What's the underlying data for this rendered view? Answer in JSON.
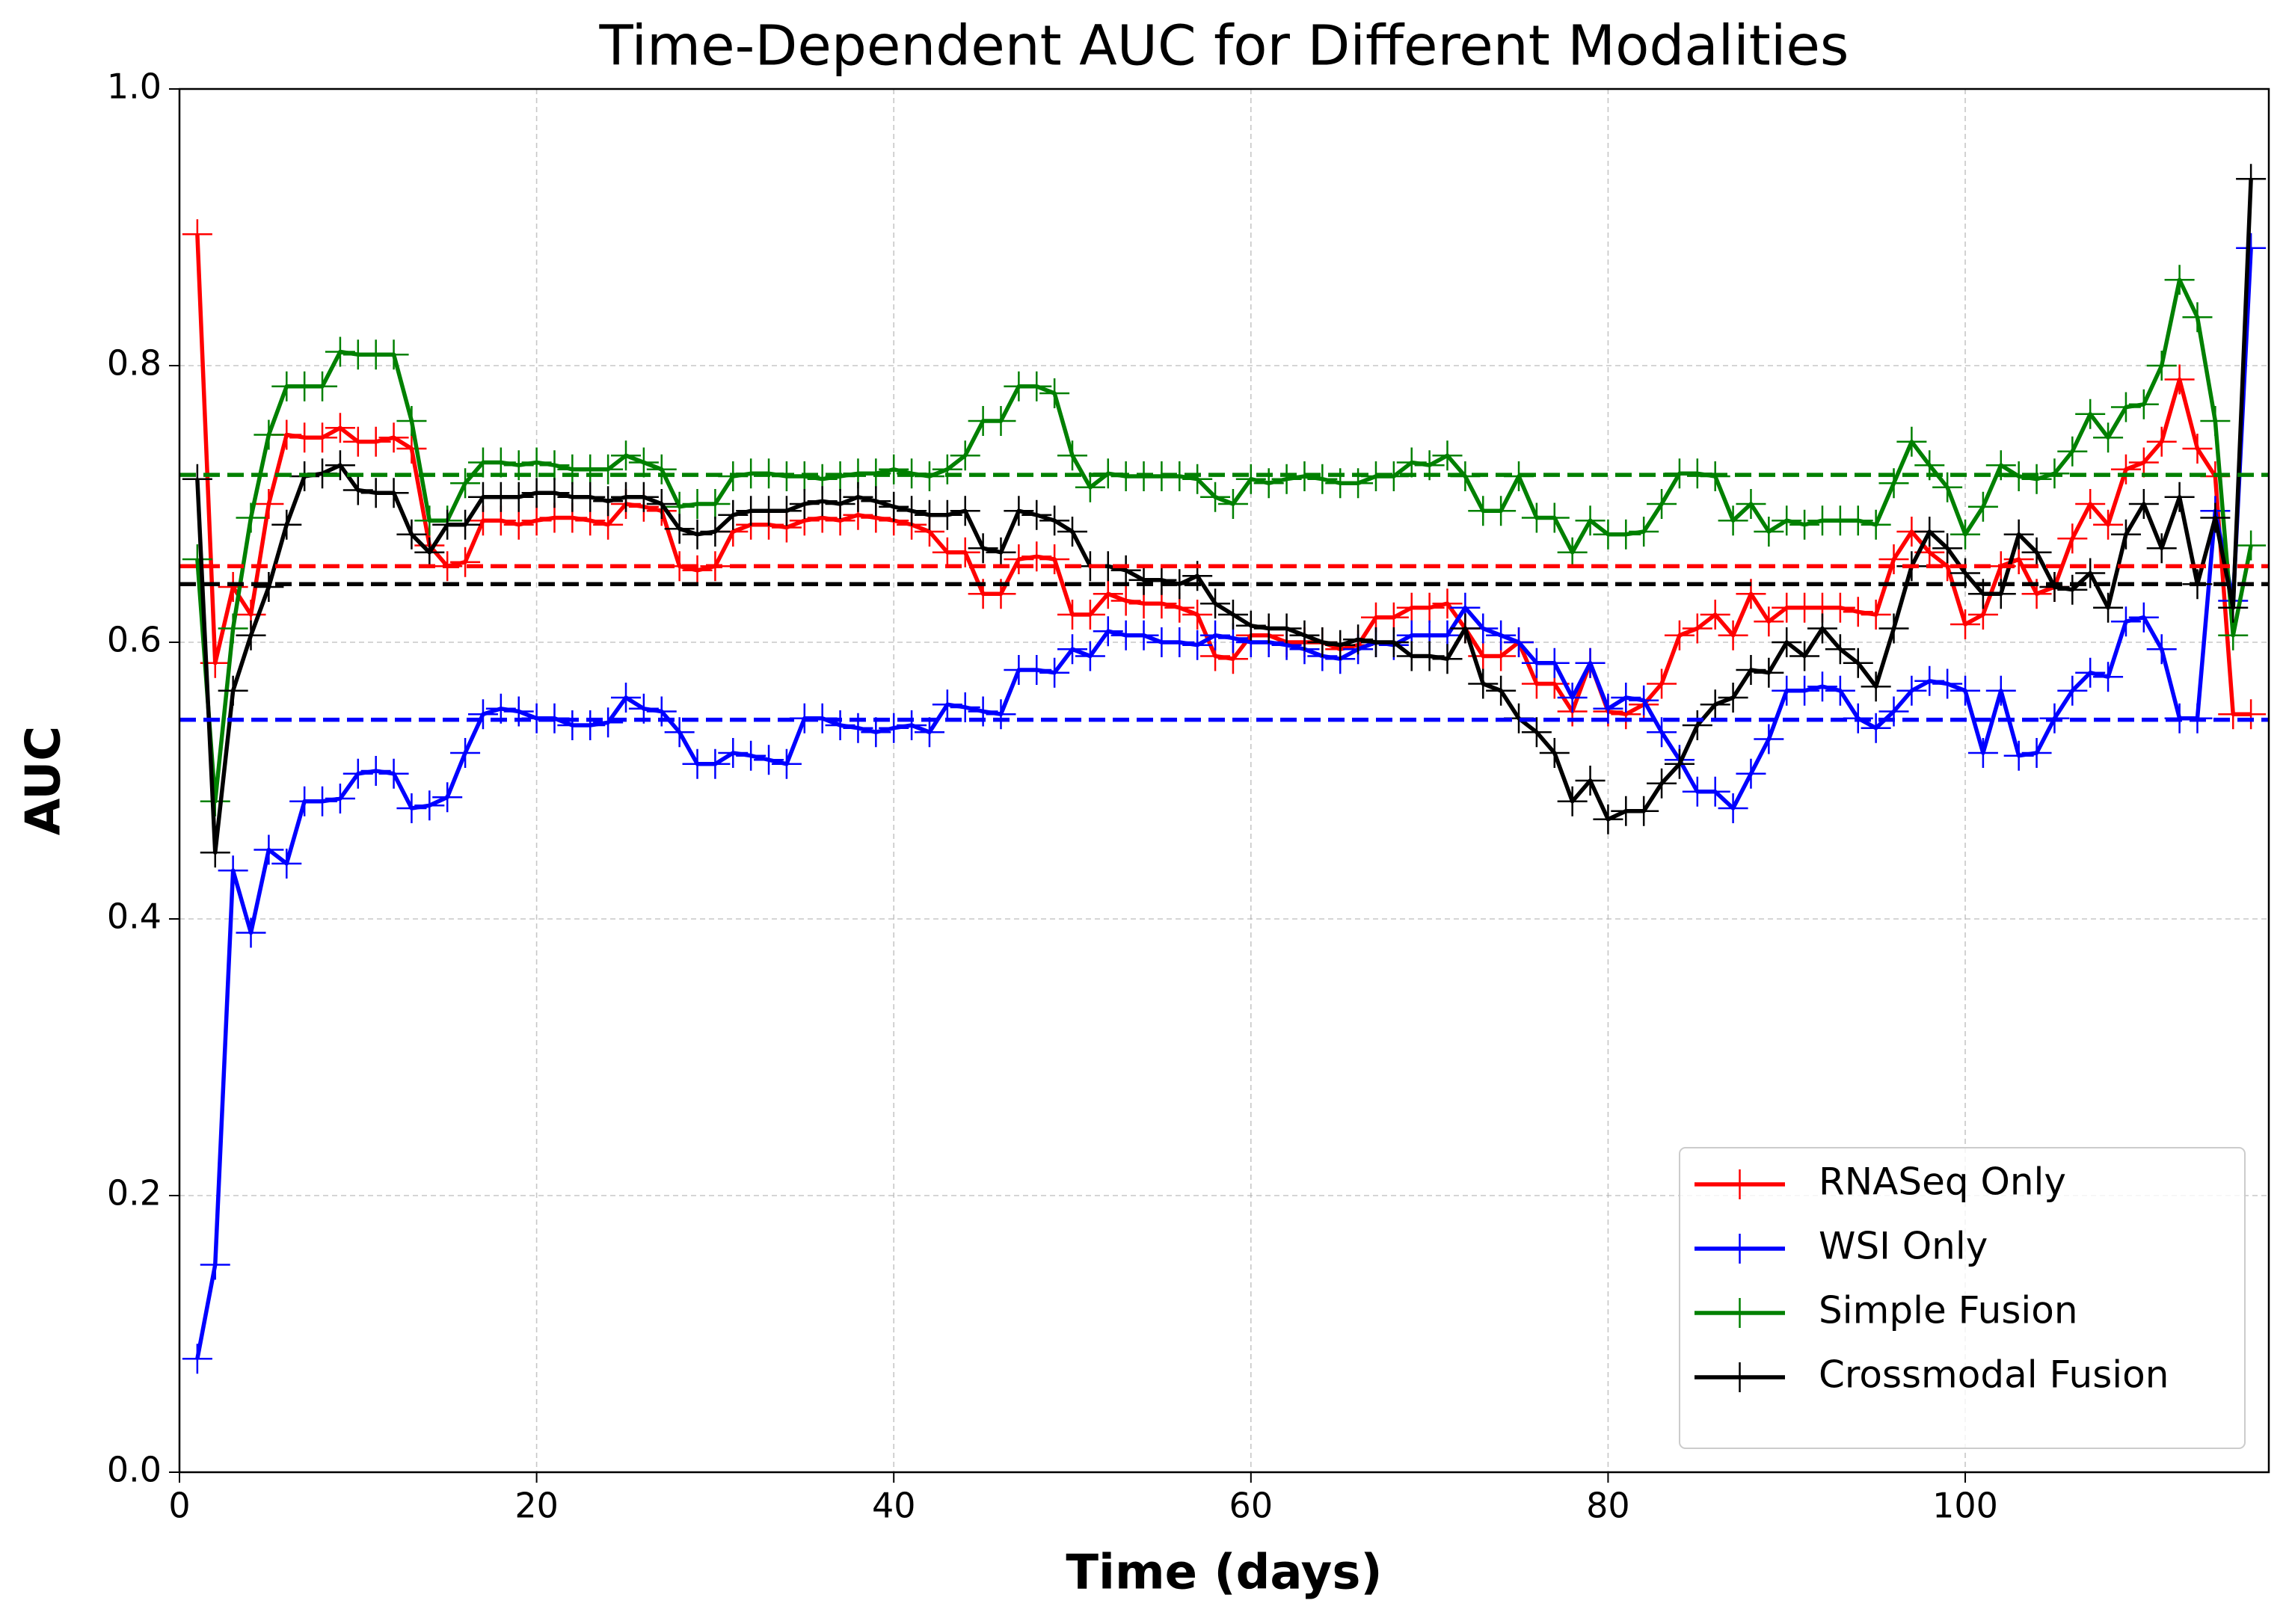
{
  "chart_data": {
    "type": "line",
    "title": "Time-Dependent AUC for Different Modalities",
    "xlabel": "Time (days)",
    "ylabel": "AUC",
    "x": [
      1,
      2,
      3,
      4,
      5,
      6,
      7,
      8,
      9,
      10,
      11,
      12,
      13,
      14,
      15,
      16,
      17,
      18,
      19,
      20,
      21,
      22,
      23,
      24,
      25,
      26,
      27,
      28,
      29,
      30,
      31,
      32,
      33,
      34,
      35,
      36,
      37,
      38,
      39,
      40,
      41,
      42,
      43,
      44,
      45,
      46,
      47,
      48,
      49,
      50,
      51,
      52,
      53,
      54,
      55,
      56,
      57,
      58,
      59,
      60,
      61,
      62,
      63,
      64,
      65,
      66,
      67,
      68,
      69,
      70,
      71,
      72,
      73,
      74,
      75,
      76,
      77,
      78,
      79,
      80,
      81,
      82,
      83,
      84,
      85,
      86,
      87,
      88,
      89,
      90,
      91,
      92,
      93,
      94,
      95,
      96,
      97,
      98,
      99,
      100,
      101,
      102,
      103,
      104,
      105,
      106,
      107,
      108,
      109,
      110,
      111,
      112,
      113,
      114,
      115,
      116
    ],
    "xlim": [
      0,
      117
    ],
    "ylim": [
      0,
      1
    ],
    "xticks": [
      0,
      20,
      40,
      60,
      80,
      100
    ],
    "yticks": [
      {
        "value": 0,
        "label": "0.0"
      },
      0.2,
      0.4,
      0.6,
      0.8,
      {
        "value": 1,
        "label": "1.0"
      }
    ],
    "grid": true,
    "legend": "lower right",
    "series": [
      {
        "name": "RNASeq Only",
        "color": "#ff0000",
        "mean": 0.655,
        "values": [
          0.895,
          0.585,
          0.64,
          0.62,
          0.7,
          0.75,
          0.748,
          0.748,
          0.755,
          0.745,
          0.745,
          0.748,
          0.74,
          0.67,
          0.655,
          0.658,
          0.688,
          0.688,
          0.685,
          0.688,
          0.69,
          0.69,
          0.688,
          0.685,
          0.7,
          0.698,
          0.695,
          0.655,
          0.652,
          0.655,
          0.68,
          0.685,
          0.685,
          0.683,
          0.688,
          0.69,
          0.688,
          0.692,
          0.69,
          0.688,
          0.685,
          0.68,
          0.665,
          0.665,
          0.635,
          0.635,
          0.66,
          0.662,
          0.66,
          0.62,
          0.62,
          0.635,
          0.63,
          0.628,
          0.628,
          0.625,
          0.62,
          0.59,
          0.588,
          0.605,
          0.605,
          0.6,
          0.6,
          0.6,
          0.595,
          0.598,
          0.618,
          0.618,
          0.625,
          0.625,
          0.628,
          0.61,
          0.59,
          0.59,
          0.6,
          0.57,
          0.57,
          0.55,
          0.585,
          0.55,
          0.548,
          0.555,
          0.57,
          0.605,
          0.61,
          0.62,
          0.605,
          0.635,
          0.615,
          0.625,
          0.625,
          0.625,
          0.625,
          0.622,
          0.62,
          0.66,
          0.68,
          0.665,
          0.655,
          0.613,
          0.62,
          0.655,
          0.66,
          0.635,
          0.64,
          0.675,
          0.7,
          0.685,
          0.725,
          0.73,
          0.745,
          0.79,
          0.74,
          0.72,
          0.548,
          0.548
        ]
      },
      {
        "name": "WSI Only",
        "color": "#0000ff",
        "mean": 0.544,
        "values": [
          0.082,
          0.15,
          0.435,
          0.39,
          0.45,
          0.44,
          0.485,
          0.485,
          0.487,
          0.505,
          0.507,
          0.505,
          0.48,
          0.482,
          0.488,
          0.52,
          0.548,
          0.552,
          0.55,
          0.545,
          0.545,
          0.54,
          0.54,
          0.542,
          0.56,
          0.552,
          0.55,
          0.535,
          0.512,
          0.512,
          0.52,
          0.518,
          0.515,
          0.512,
          0.545,
          0.545,
          0.54,
          0.538,
          0.535,
          0.538,
          0.54,
          0.535,
          0.555,
          0.553,
          0.55,
          0.548,
          0.58,
          0.58,
          0.578,
          0.595,
          0.59,
          0.608,
          0.605,
          0.605,
          0.6,
          0.6,
          0.598,
          0.605,
          0.603,
          0.6,
          0.6,
          0.598,
          0.595,
          0.59,
          0.588,
          0.595,
          0.6,
          0.598,
          0.605,
          0.605,
          0.605,
          0.625,
          0.61,
          0.605,
          0.6,
          0.585,
          0.585,
          0.56,
          0.585,
          0.552,
          0.56,
          0.558,
          0.535,
          0.515,
          0.492,
          0.492,
          0.48,
          0.505,
          0.53,
          0.565,
          0.565,
          0.568,
          0.565,
          0.545,
          0.538,
          0.55,
          0.565,
          0.572,
          0.57,
          0.565,
          0.52,
          0.565,
          0.518,
          0.52,
          0.545,
          0.565,
          0.578,
          0.575,
          0.615,
          0.618,
          0.595,
          0.545,
          0.545,
          0.695,
          0.63,
          0.885
        ]
      },
      {
        "name": "Simple Fusion",
        "color": "#008000",
        "mean": 0.721,
        "values": [
          0.66,
          0.485,
          0.61,
          0.69,
          0.75,
          0.785,
          0.785,
          0.785,
          0.81,
          0.808,
          0.808,
          0.808,
          0.76,
          0.688,
          0.688,
          0.715,
          0.73,
          0.73,
          0.728,
          0.73,
          0.728,
          0.725,
          0.725,
          0.725,
          0.735,
          0.73,
          0.725,
          0.698,
          0.7,
          0.7,
          0.72,
          0.722,
          0.722,
          0.72,
          0.72,
          0.718,
          0.72,
          0.722,
          0.722,
          0.725,
          0.722,
          0.72,
          0.725,
          0.735,
          0.76,
          0.76,
          0.785,
          0.785,
          0.78,
          0.735,
          0.712,
          0.722,
          0.72,
          0.72,
          0.72,
          0.72,
          0.718,
          0.705,
          0.7,
          0.718,
          0.715,
          0.718,
          0.72,
          0.718,
          0.715,
          0.715,
          0.72,
          0.72,
          0.73,
          0.728,
          0.735,
          0.72,
          0.695,
          0.695,
          0.72,
          0.69,
          0.69,
          0.665,
          0.688,
          0.678,
          0.678,
          0.68,
          0.7,
          0.722,
          0.722,
          0.72,
          0.688,
          0.7,
          0.68,
          0.688,
          0.685,
          0.688,
          0.688,
          0.688,
          0.685,
          0.715,
          0.745,
          0.728,
          0.712,
          0.678,
          0.698,
          0.728,
          0.72,
          0.718,
          0.722,
          0.738,
          0.765,
          0.748,
          0.77,
          0.772,
          0.8,
          0.862,
          0.835,
          0.76,
          0.605,
          0.67
        ]
      },
      {
        "name": "Crossmodal Fusion",
        "color": "#000000",
        "mean": 0.642,
        "values": [
          0.718,
          0.448,
          0.565,
          0.605,
          0.64,
          0.685,
          0.72,
          0.722,
          0.728,
          0.71,
          0.708,
          0.708,
          0.678,
          0.665,
          0.685,
          0.685,
          0.705,
          0.705,
          0.705,
          0.708,
          0.708,
          0.705,
          0.705,
          0.702,
          0.705,
          0.705,
          0.7,
          0.682,
          0.678,
          0.68,
          0.692,
          0.695,
          0.695,
          0.695,
          0.7,
          0.702,
          0.7,
          0.705,
          0.702,
          0.698,
          0.695,
          0.692,
          0.692,
          0.695,
          0.668,
          0.665,
          0.695,
          0.692,
          0.688,
          0.68,
          0.655,
          0.655,
          0.652,
          0.645,
          0.645,
          0.642,
          0.648,
          0.628,
          0.62,
          0.612,
          0.61,
          0.61,
          0.605,
          0.6,
          0.598,
          0.602,
          0.6,
          0.6,
          0.59,
          0.59,
          0.588,
          0.61,
          0.57,
          0.565,
          0.545,
          0.535,
          0.52,
          0.485,
          0.5,
          0.472,
          0.478,
          0.478,
          0.498,
          0.512,
          0.54,
          0.555,
          0.56,
          0.58,
          0.578,
          0.6,
          0.59,
          0.61,
          0.595,
          0.585,
          0.568,
          0.61,
          0.655,
          0.68,
          0.668,
          0.65,
          0.635,
          0.635,
          0.678,
          0.665,
          0.64,
          0.638,
          0.65,
          0.625,
          0.678,
          0.7,
          0.668,
          0.705,
          0.642,
          0.69,
          0.625,
          0.935
        ]
      }
    ]
  }
}
